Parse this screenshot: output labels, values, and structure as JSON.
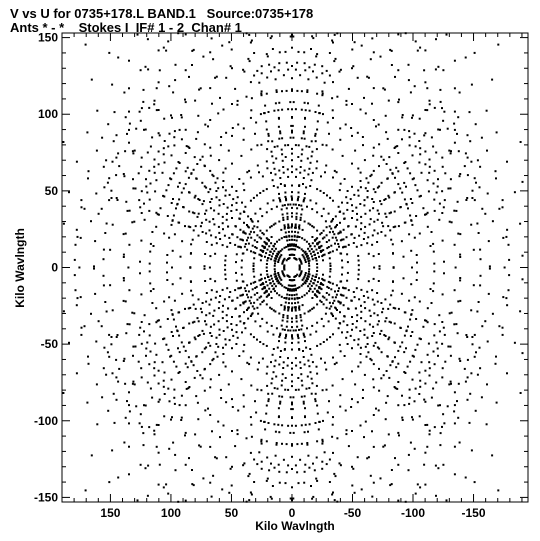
{
  "header": {
    "line1": "V vs U for 0735+178.L BAND.1   Source:0735+178",
    "line2": "Ants * - *    Stokes I  IF# 1 - 2  Chan# 1"
  },
  "chart_data": {
    "type": "scatter",
    "xlabel": "Kilo Wavlngth",
    "ylabel": "Kilo Wavlngth",
    "xlim": [
      190,
      -195
    ],
    "ylim": [
      -153,
      153
    ],
    "xticks": [
      150,
      100,
      50,
      0,
      -50,
      -100,
      -150
    ],
    "xtick_labels": [
      "150",
      "100",
      "50",
      "0",
      "-50",
      "-100",
      "-150"
    ],
    "yticks": [
      150,
      100,
      50,
      0,
      -50,
      -100,
      -150
    ],
    "ytick_labels": [
      "150",
      "100",
      "50",
      "0",
      "-50",
      "-100",
      "-150"
    ],
    "arm_angles_deg": [
      90,
      148,
      208,
      270,
      328,
      28
    ],
    "arm_max_radius": 180,
    "color": "#000000"
  }
}
